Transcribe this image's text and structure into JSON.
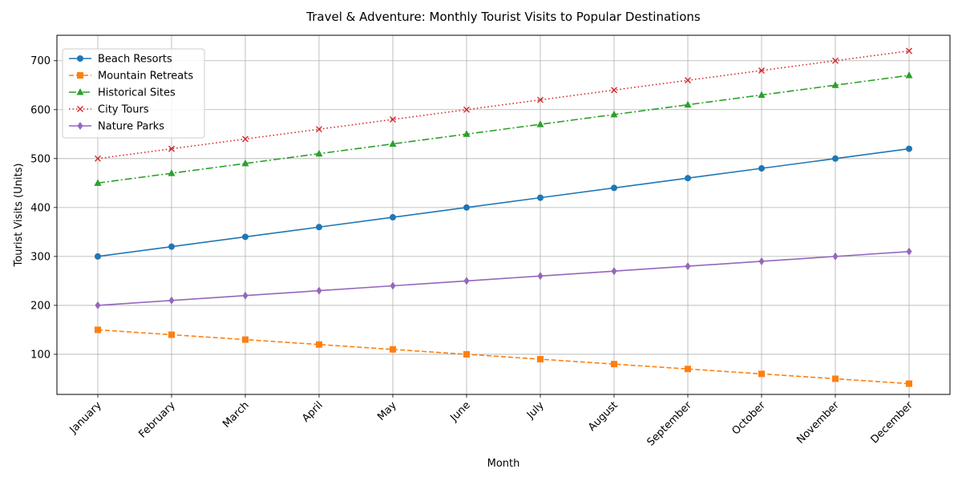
{
  "chart_data": {
    "type": "line",
    "title": "Travel & Adventure: Monthly Tourist Visits to Popular Destinations",
    "xlabel": "Month",
    "ylabel": "Tourist Visits (Units)",
    "categories": [
      "January",
      "February",
      "March",
      "April",
      "May",
      "June",
      "July",
      "August",
      "September",
      "October",
      "November",
      "December"
    ],
    "ylim": [
      18,
      752
    ],
    "yticks": [
      100,
      200,
      300,
      400,
      500,
      600,
      700
    ],
    "grid": true,
    "legend_position": "top-left",
    "series": [
      {
        "name": "Beach Resorts",
        "color": "#1f77b4",
        "dash": "solid",
        "marker": "circle",
        "values": [
          300,
          320,
          340,
          360,
          380,
          400,
          420,
          440,
          460,
          480,
          500,
          520
        ]
      },
      {
        "name": "Mountain Retreats",
        "color": "#ff7f0e",
        "dash": "dashed",
        "marker": "square",
        "values": [
          150,
          140,
          130,
          120,
          110,
          100,
          90,
          80,
          70,
          60,
          50,
          40
        ]
      },
      {
        "name": "Historical Sites",
        "color": "#2ca02c",
        "dash": "dashdot",
        "marker": "triangle",
        "values": [
          450,
          470,
          490,
          510,
          530,
          550,
          570,
          590,
          610,
          630,
          650,
          670
        ]
      },
      {
        "name": "City Tours",
        "color": "#d62728",
        "dash": "dotted",
        "marker": "x",
        "values": [
          500,
          520,
          540,
          560,
          580,
          600,
          620,
          640,
          660,
          680,
          700,
          720
        ]
      },
      {
        "name": "Nature Parks",
        "color": "#9467bd",
        "dash": "solid",
        "marker": "diamond",
        "values": [
          200,
          210,
          220,
          230,
          240,
          250,
          260,
          270,
          280,
          290,
          300,
          310
        ]
      }
    ]
  }
}
